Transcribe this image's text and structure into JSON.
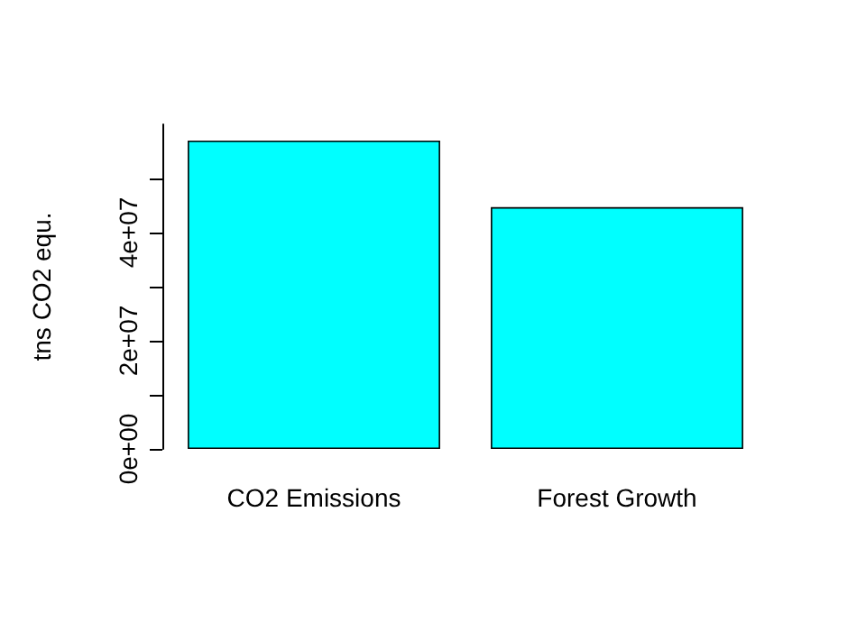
{
  "chart_data": {
    "type": "bar",
    "ylabel": "tns CO2 equ.",
    "categories": [
      "CO2 Emissions",
      "Forest Growth"
    ],
    "values": [
      57000000,
      44700000
    ],
    "color": "#00ffff",
    "ylim": [
      0,
      60000000
    ],
    "yticks": [
      {
        "value": 0,
        "label": "0e+00"
      },
      {
        "value": 10000000,
        "label": null
      },
      {
        "value": 20000000,
        "label": "2e+07"
      },
      {
        "value": 30000000,
        "label": null
      },
      {
        "value": 40000000,
        "label": "4e+07"
      },
      {
        "value": 50000000,
        "label": null
      }
    ],
    "grid": false
  }
}
